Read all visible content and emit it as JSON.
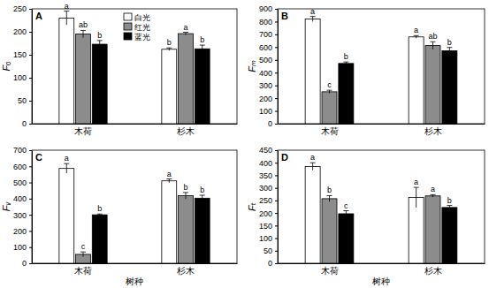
{
  "chart_data": [
    {
      "type": "bar",
      "title": "A",
      "y_label": "Fₒ",
      "categories": [
        "木荷",
        "杉木"
      ],
      "ylim": [
        0,
        250
      ],
      "yticks": [
        0,
        50,
        100,
        150,
        200,
        250
      ],
      "legend": "top",
      "series": [
        {
          "name": "白光",
          "color": "#ffffff",
          "values": [
            230,
            162
          ],
          "errors": [
            15,
            3
          ],
          "letters": [
            "a",
            "b"
          ]
        },
        {
          "name": "红光",
          "color": "#8c8c8c",
          "values": [
            195,
            196
          ],
          "errors": [
            8,
            3
          ],
          "letters": [
            "ab",
            "a"
          ]
        },
        {
          "name": "蓝光",
          "color": "#000000",
          "values": [
            173,
            163
          ],
          "errors": [
            8,
            8
          ],
          "letters": [
            "b",
            "b"
          ]
        }
      ]
    },
    {
      "type": "bar",
      "title": "B",
      "y_label": "Fₘ",
      "categories": [
        "木荷",
        "杉木"
      ],
      "ylim": [
        0,
        900
      ],
      "yticks": [
        0,
        100,
        200,
        300,
        400,
        500,
        600,
        700,
        800,
        900
      ],
      "series": [
        {
          "color": "#ffffff",
          "values": [
            820,
            680
          ],
          "errors": [
            20,
            10
          ],
          "letters": [
            "a",
            "a"
          ]
        },
        {
          "color": "#8c8c8c",
          "values": [
            250,
            612
          ],
          "errors": [
            12,
            30
          ],
          "letters": [
            "c",
            "ab"
          ]
        },
        {
          "color": "#000000",
          "values": [
            472,
            572
          ],
          "errors": [
            12,
            25
          ],
          "letters": [
            "b",
            "b"
          ]
        }
      ]
    },
    {
      "type": "bar",
      "title": "C",
      "y_label": "Fᵥ",
      "x_label": "树种",
      "categories": [
        "木荷",
        "杉木"
      ],
      "ylim": [
        0,
        700
      ],
      "yticks": [
        0,
        100,
        200,
        300,
        400,
        500,
        600,
        700
      ],
      "series": [
        {
          "color": "#ffffff",
          "values": [
            587,
            510
          ],
          "errors": [
            30,
            12
          ],
          "letters": [
            "a",
            "a"
          ]
        },
        {
          "color": "#8c8c8c",
          "values": [
            55,
            418
          ],
          "errors": [
            15,
            20
          ],
          "letters": [
            "c",
            "b"
          ]
        },
        {
          "color": "#000000",
          "values": [
            300,
            403
          ],
          "errors": [
            5,
            18
          ],
          "letters": [
            "b",
            "b"
          ]
        }
      ]
    },
    {
      "type": "bar",
      "title": "D",
      "y_label": "Fₜ",
      "x_label": "树种",
      "categories": [
        "木荷",
        "杉木"
      ],
      "ylim": [
        0,
        450
      ],
      "yticks": [
        0,
        50,
        100,
        150,
        200,
        250,
        300,
        350,
        400,
        450
      ],
      "series": [
        {
          "color": "#ffffff",
          "values": [
            385,
            262
          ],
          "errors": [
            15,
            40
          ],
          "letters": [
            "a",
            "a"
          ]
        },
        {
          "color": "#8c8c8c",
          "values": [
            257,
            268
          ],
          "errors": [
            12,
            5
          ],
          "letters": [
            "b",
            "a"
          ]
        },
        {
          "color": "#000000",
          "values": [
            197,
            222
          ],
          "errors": [
            12,
            8
          ],
          "letters": [
            "c",
            "b"
          ]
        }
      ]
    }
  ]
}
